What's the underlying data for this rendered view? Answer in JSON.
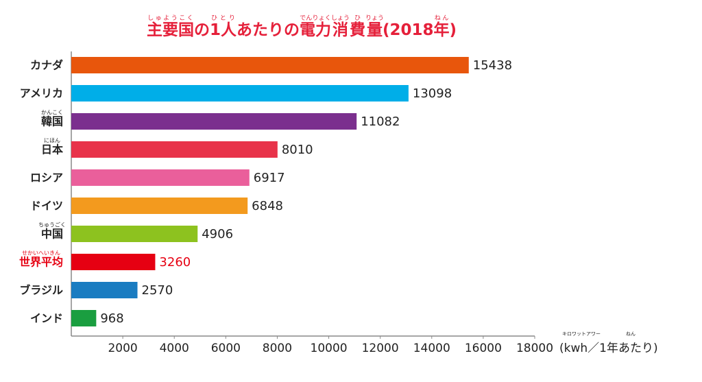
{
  "chart_data": {
    "type": "hbar",
    "title_parts": [
      {
        "text": "主要国",
        "ruby": "しゅようこく"
      },
      {
        "text": "の"
      },
      {
        "text": "1人",
        "ruby": "ひとり"
      },
      {
        "text": "あたりの"
      },
      {
        "text": "電力",
        "ruby": "でんりょく"
      },
      {
        "text": "消",
        "ruby": "しょう"
      },
      {
        "text": "費",
        "ruby": "ひ"
      },
      {
        "text": "量",
        "ruby": "りょう"
      },
      {
        "text": "(2018"
      },
      {
        "text": "年",
        "ruby": "ねん"
      },
      {
        "text": ")"
      }
    ],
    "categories": [
      "カナダ",
      "アメリカ",
      "韓国",
      "日本",
      "ロシア",
      "ドイツ",
      "中国",
      "世界平均",
      "ブラジル",
      "インド"
    ],
    "category_ruby": [
      null,
      null,
      "かんこく",
      "にほん",
      null,
      null,
      "ちゅうごく",
      "せかいへいきん",
      null,
      null
    ],
    "values": [
      15438,
      13098,
      11082,
      8010,
      6917,
      6848,
      4906,
      3260,
      2570,
      968
    ],
    "colors": [
      "#e8560c",
      "#00aee8",
      "#7b2f8e",
      "#e8334a",
      "#ea5f9b",
      "#f39a1e",
      "#8dc21f",
      "#e60012",
      "#1a7cc1",
      "#1a9e40"
    ],
    "highlight_index": 7,
    "highlight_color": "#e60012",
    "x_label": "(kwh／1年あたり)",
    "x_label_ruby": [
      "キロワットアワー",
      "ねん"
    ],
    "xlim": [
      0,
      18000
    ],
    "xticks": [
      2000,
      4000,
      6000,
      8000,
      10000,
      12000,
      14000,
      16000,
      18000
    ]
  }
}
